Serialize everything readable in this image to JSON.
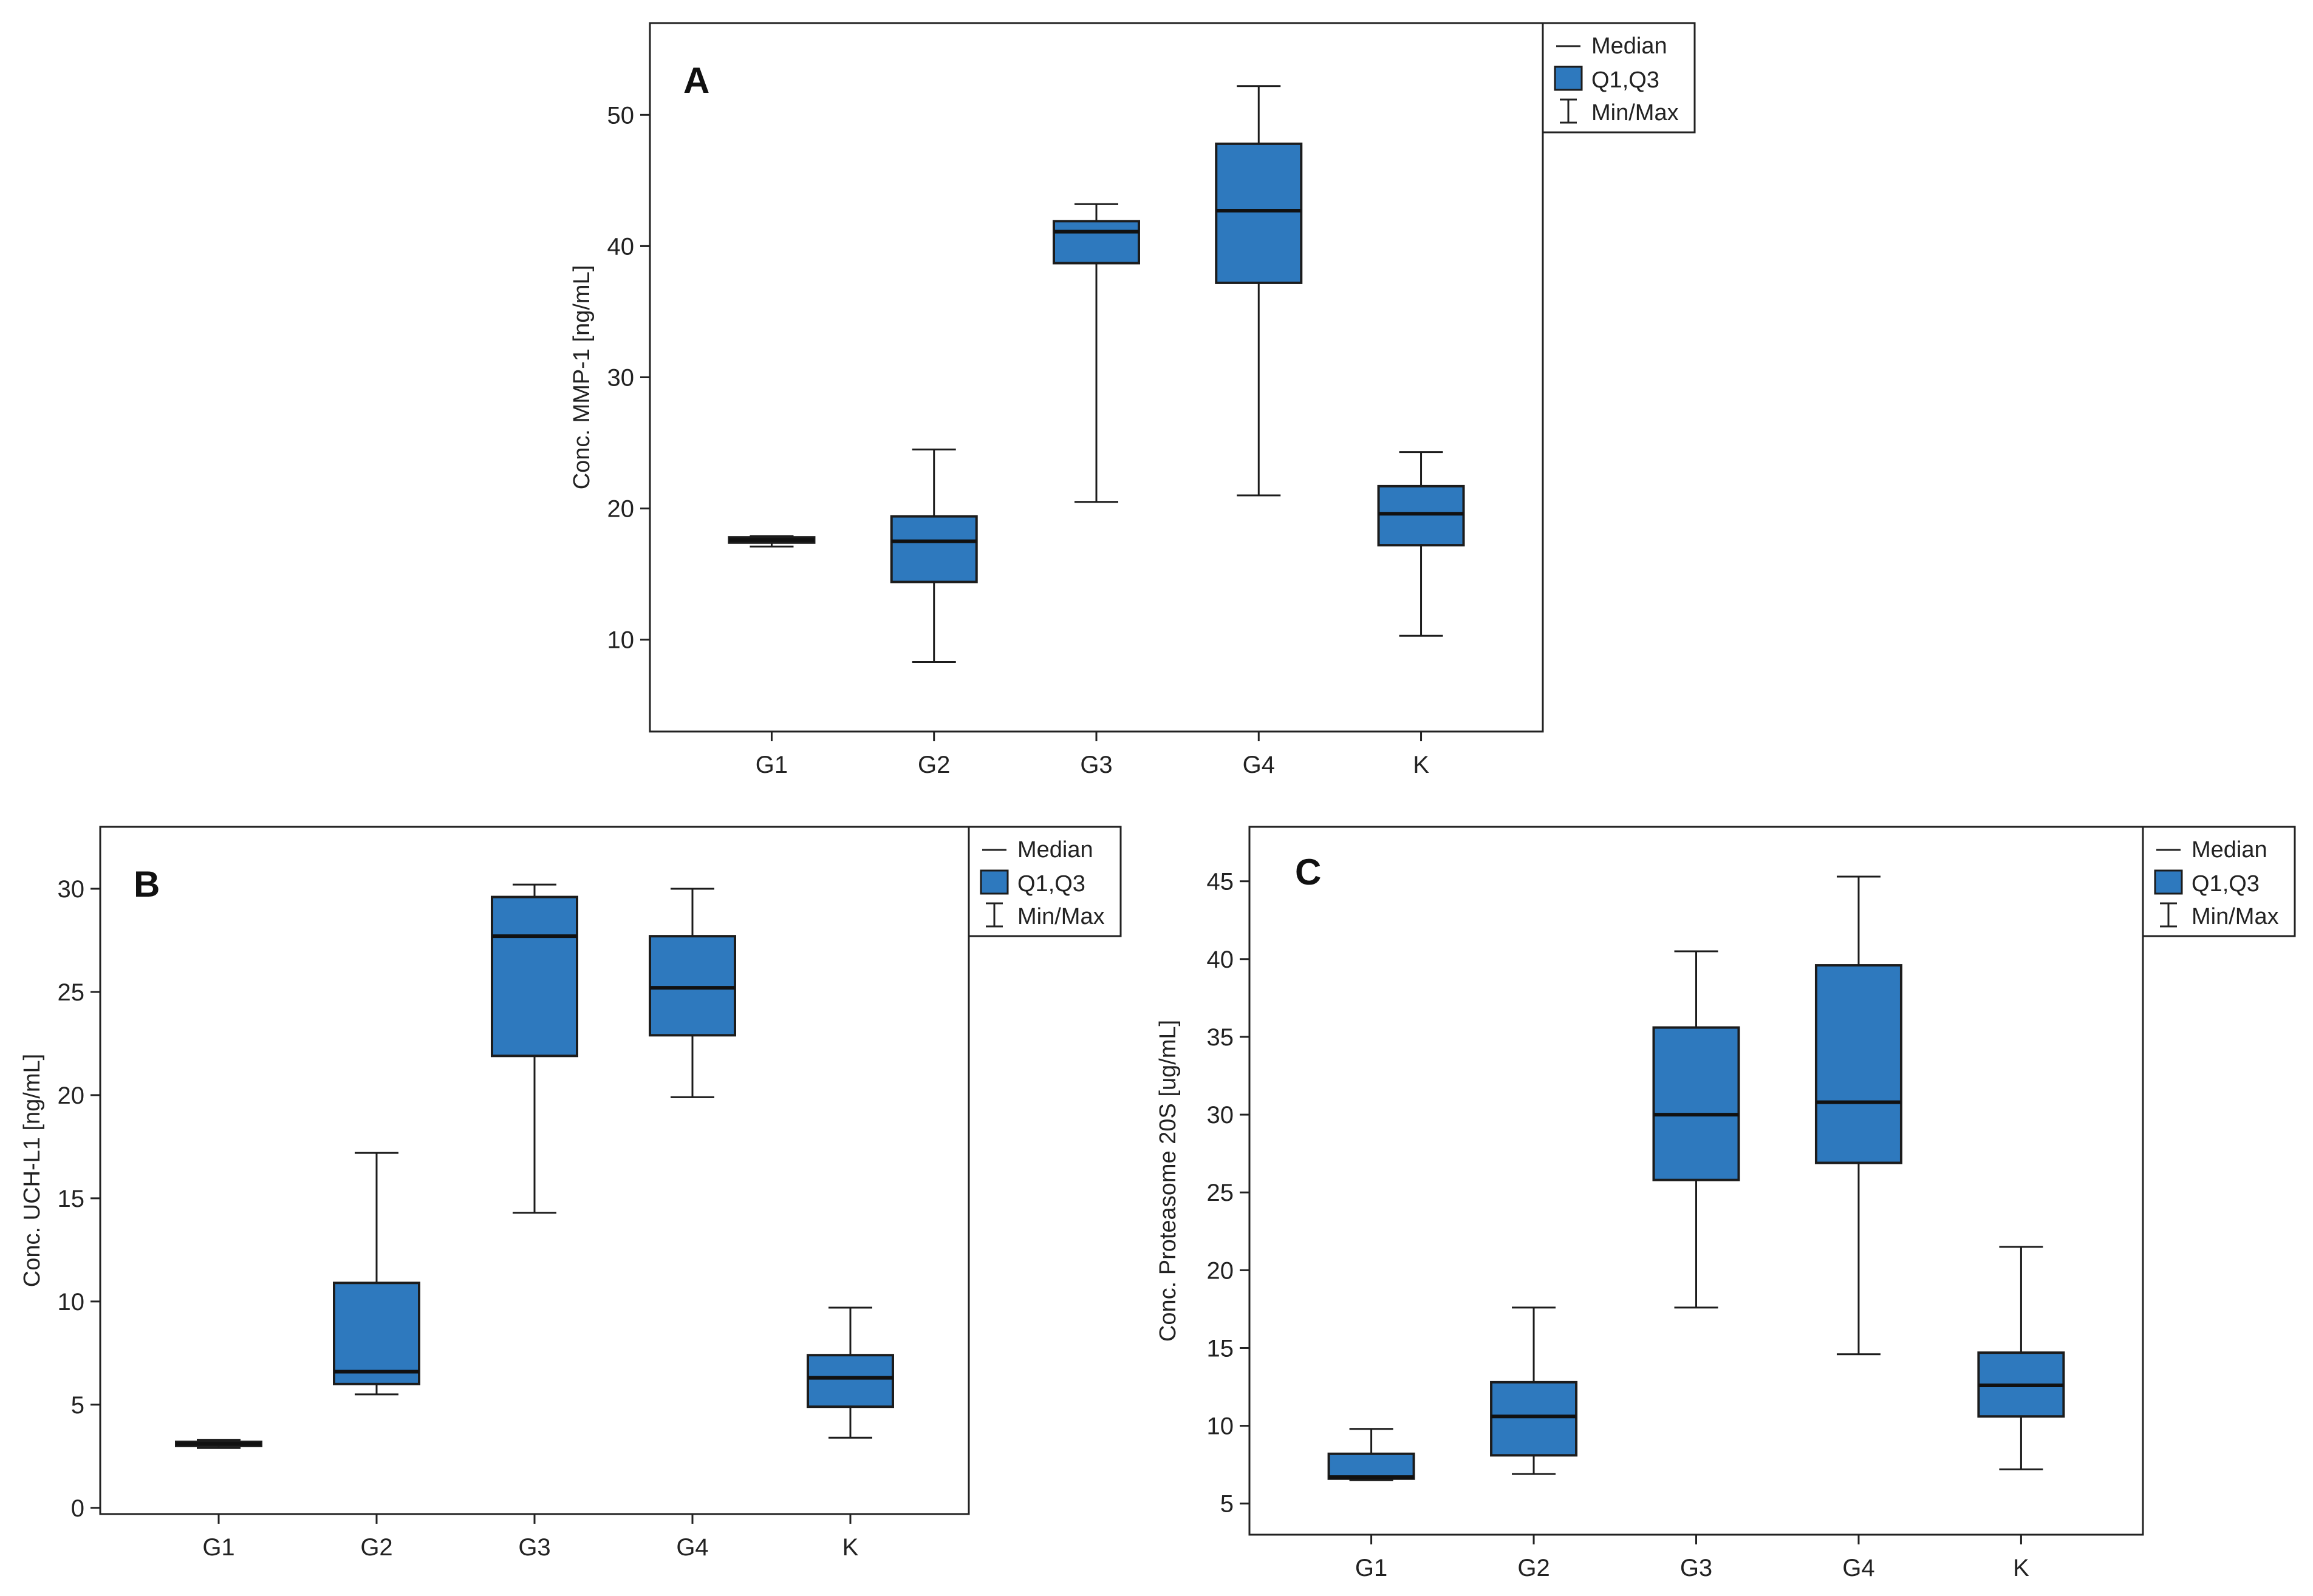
{
  "colors": {
    "box_fill": "#2e79be",
    "outline": "#1c1c1c",
    "background": "#ffffff"
  },
  "chart_data": [
    {
      "panel": "A",
      "type": "box",
      "ylabel": "Conc. MMP-1 [ng/mL]",
      "categories": [
        "G1",
        "G2",
        "G3",
        "G4",
        "K"
      ],
      "yticks": [
        10,
        20,
        30,
        40,
        50
      ],
      "ylim": [
        3,
        57
      ],
      "legend": {
        "median": "Median",
        "quartiles": "Q1,Q3",
        "minmax": "Min/Max"
      },
      "boxes": [
        {
          "min": 17.1,
          "q1": 17.4,
          "median": 17.6,
          "q3": 17.8,
          "max": 17.9
        },
        {
          "min": 8.3,
          "q1": 14.4,
          "median": 17.5,
          "q3": 19.4,
          "max": 24.5
        },
        {
          "min": 20.5,
          "q1": 38.7,
          "median": 41.1,
          "q3": 41.9,
          "max": 43.2
        },
        {
          "min": 21.0,
          "q1": 37.2,
          "median": 42.7,
          "q3": 47.8,
          "max": 52.2
        },
        {
          "min": 10.3,
          "q1": 17.2,
          "median": 19.6,
          "q3": 21.7,
          "max": 24.3
        }
      ]
    },
    {
      "panel": "B",
      "type": "box",
      "ylabel": "Conc. UCH-L1 [ng/mL]",
      "categories": [
        "G1",
        "G2",
        "G3",
        "G4",
        "K"
      ],
      "yticks": [
        0,
        5,
        10,
        15,
        20,
        25,
        30
      ],
      "ylim": [
        -0.3,
        33
      ],
      "legend": {
        "median": "Median",
        "quartiles": "Q1,Q3",
        "minmax": "Min/Max"
      },
      "boxes": [
        {
          "min": 2.9,
          "q1": 3.0,
          "median": 3.1,
          "q3": 3.2,
          "max": 3.3
        },
        {
          "min": 5.5,
          "q1": 6.0,
          "median": 6.6,
          "q3": 10.9,
          "max": 17.2
        },
        {
          "min": 14.3,
          "q1": 21.9,
          "median": 27.7,
          "q3": 29.6,
          "max": 30.2
        },
        {
          "min": 19.9,
          "q1": 22.9,
          "median": 25.2,
          "q3": 27.7,
          "max": 30.0
        },
        {
          "min": 3.4,
          "q1": 4.9,
          "median": 6.3,
          "q3": 7.4,
          "max": 9.7
        }
      ]
    },
    {
      "panel": "C",
      "type": "box",
      "ylabel": "Conc. Proteasome 20S [ug/mL]",
      "categories": [
        "G1",
        "G2",
        "G3",
        "G4",
        "K"
      ],
      "yticks": [
        5,
        10,
        15,
        20,
        25,
        30,
        35,
        40,
        45
      ],
      "ylim": [
        3,
        48.5
      ],
      "legend": {
        "median": "Median",
        "quartiles": "Q1,Q3",
        "minmax": "Min/Max"
      },
      "boxes": [
        {
          "min": 6.5,
          "q1": 6.6,
          "median": 6.7,
          "q3": 8.2,
          "max": 9.8
        },
        {
          "min": 6.9,
          "q1": 8.1,
          "median": 10.6,
          "q3": 12.8,
          "max": 17.6
        },
        {
          "min": 17.6,
          "q1": 25.8,
          "median": 30.0,
          "q3": 35.6,
          "max": 40.5
        },
        {
          "min": 14.6,
          "q1": 26.9,
          "median": 30.8,
          "q3": 39.6,
          "max": 45.3
        },
        {
          "min": 7.2,
          "q1": 10.6,
          "median": 12.6,
          "q3": 14.7,
          "max": 21.5
        }
      ]
    }
  ]
}
